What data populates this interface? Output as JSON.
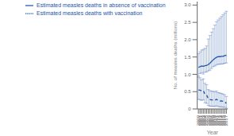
{
  "chart_data": {
    "type": "line",
    "xlabel": "Year",
    "ylabel": "No. of measles deaths (millions)",
    "x": [
      2000,
      2001,
      2002,
      2003,
      2004,
      2005,
      2006,
      2007,
      2008,
      2009,
      2010,
      2011,
      2012,
      2013,
      2014,
      2015,
      2016,
      2017
    ],
    "xlim": [
      1999.3,
      2017.8
    ],
    "xticks": [
      2000,
      2001,
      2002,
      2003,
      2004,
      2005,
      2006,
      2007,
      2008,
      2009,
      2010,
      2011,
      2012,
      2013,
      2014,
      2015,
      2016,
      2017
    ],
    "ylim": [
      0,
      3.1
    ],
    "yticks": [
      0,
      0.5,
      {
        "value": 1,
        "label": "1.0"
      },
      1.5,
      {
        "value": 2,
        "label": "2.0"
      },
      2.5,
      {
        "value": 3,
        "label": "3.0"
      }
    ],
    "grid": false,
    "legend": "upper left",
    "series": [
      {
        "name": "Estimated measles deaths in absence of vaccination",
        "color": "#2255aa",
        "line_style": "solid",
        "values": [
          1.2,
          1.22,
          1.24,
          1.23,
          1.25,
          1.26,
          1.28,
          1.32,
          1.37,
          1.42,
          1.46,
          1.49,
          1.51,
          1.51,
          1.52,
          1.52,
          1.54,
          1.55
        ],
        "error_low": [
          0.95,
          1.02,
          1.05,
          1.01,
          1.06,
          1.07,
          1.1,
          1.12,
          1.17,
          1.22,
          1.24,
          1.27,
          1.29,
          1.29,
          1.3,
          1.3,
          1.32,
          1.33
        ],
        "error_high": [
          1.6,
          1.65,
          1.7,
          1.72,
          1.75,
          1.82,
          2.02,
          2.12,
          2.22,
          2.32,
          2.42,
          2.52,
          2.57,
          2.62,
          2.67,
          2.72,
          2.77,
          2.82
        ]
      },
      {
        "name": "Estimated measles deaths with vaccination",
        "color": "#2255aa",
        "line_style": "dashed",
        "values": [
          0.55,
          0.54,
          0.52,
          0.53,
          0.42,
          0.4,
          0.3,
          0.27,
          0.26,
          0.26,
          0.25,
          0.28,
          0.24,
          0.23,
          0.23,
          0.22,
          0.21,
          0.16
        ],
        "error_low": [
          0.28,
          0.26,
          0.25,
          0.26,
          0.18,
          0.16,
          0.1,
          0.08,
          0.08,
          0.08,
          0.07,
          0.09,
          0.07,
          0.06,
          0.06,
          0.05,
          0.05,
          0.02
        ],
        "error_high": [
          0.92,
          0.9,
          0.84,
          0.87,
          0.74,
          0.7,
          0.56,
          0.53,
          0.51,
          0.51,
          0.49,
          0.52,
          0.47,
          0.46,
          0.45,
          0.43,
          0.41,
          0.36
        ]
      }
    ]
  }
}
